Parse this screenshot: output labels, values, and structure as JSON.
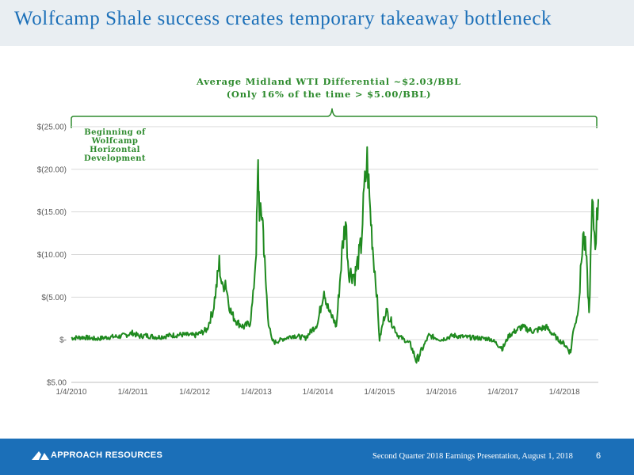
{
  "slide": {
    "title": "Wolfcamp Shale success creates temporary takeaway bottleneck",
    "annotation_line1": "Average Midland WTI Differential ~$2.03/BBL",
    "annotation_line2": "(Only 16% of the time > $5.00/BBL)",
    "marker_lines": [
      "Beginning of",
      "Wolfcamp",
      "Horizontal",
      "Development"
    ]
  },
  "footer": {
    "company": "APPROACH RESOURCES",
    "presentation": "Second Quarter 2018 Earnings Presentation, August 1, 2018",
    "page": "6"
  },
  "colors": {
    "series": "#1f8a1f",
    "annotation": "#2e8b2e",
    "title": "#1b6fb8",
    "footer_bg": "#1b6fb8"
  },
  "chart_data": {
    "type": "line",
    "title": "",
    "xlabel": "",
    "ylabel": "",
    "ylim": [
      -5,
      25
    ],
    "yticks": [
      {
        "value": 25,
        "label": "$(25.00)"
      },
      {
        "value": 20,
        "label": "$(20.00)"
      },
      {
        "value": 15,
        "label": "$(15.00)"
      },
      {
        "value": 10,
        "label": "$(10.00)"
      },
      {
        "value": 5,
        "label": "$(5.00)"
      },
      {
        "value": 0,
        "label": "$-"
      },
      {
        "value": -5,
        "label": "$5.00"
      }
    ],
    "xticks": [
      "1/4/2010",
      "1/4/2011",
      "1/4/2012",
      "1/4/2013",
      "1/4/2014",
      "1/4/2015",
      "1/4/2016",
      "1/4/2017",
      "1/4/2018"
    ],
    "grid": true,
    "series": [
      {
        "name": "",
        "x": [
          2010.0,
          2010.2,
          2010.4,
          2010.6,
          2010.8,
          2011.0,
          2011.1,
          2011.2,
          2011.4,
          2011.6,
          2011.8,
          2012.0,
          2012.1,
          2012.2,
          2012.3,
          2012.35,
          2012.4,
          2012.45,
          2012.5,
          2012.55,
          2012.6,
          2012.7,
          2012.8,
          2012.9,
          2012.95,
          2013.0,
          2013.03,
          2013.06,
          2013.1,
          2013.13,
          2013.16,
          2013.2,
          2013.25,
          2013.3,
          2013.4,
          2013.6,
          2013.8,
          2014.0,
          2014.1,
          2014.15,
          2014.2,
          2014.25,
          2014.3,
          2014.4,
          2014.45,
          2014.5,
          2014.6,
          2014.7,
          2014.75,
          2014.8,
          2014.85,
          2014.9,
          2014.95,
          2015.0,
          2015.1,
          2015.2,
          2015.3,
          2015.4,
          2015.5,
          2015.6,
          2015.7,
          2015.8,
          2016.0,
          2016.2,
          2016.4,
          2016.6,
          2016.8,
          2017.0,
          2017.1,
          2017.3,
          2017.5,
          2017.7,
          2017.9,
          2018.0,
          2018.1,
          2018.15,
          2018.2,
          2018.25,
          2018.3,
          2018.35,
          2018.4,
          2018.45,
          2018.5,
          2018.55
        ],
        "values": [
          0.2,
          0.3,
          0.1,
          0.3,
          0.4,
          0.8,
          0.4,
          0.5,
          0.3,
          0.5,
          0.6,
          0.5,
          0.8,
          1.2,
          3.5,
          6.0,
          9.0,
          6.0,
          7.0,
          4.5,
          3.0,
          2.0,
          1.5,
          2.0,
          5.0,
          11.0,
          20.0,
          14.0,
          15.0,
          10.0,
          6.0,
          2.0,
          0.0,
          -0.3,
          0.0,
          0.5,
          0.2,
          2.0,
          6.0,
          4.0,
          3.0,
          2.5,
          1.5,
          11.0,
          14.0,
          8.0,
          7.5,
          11.0,
          17.0,
          21.0,
          15.0,
          10.0,
          6.0,
          0.0,
          3.5,
          2.0,
          0.5,
          0.0,
          -0.5,
          -2.5,
          -1.0,
          0.5,
          0.0,
          0.5,
          0.3,
          0.2,
          0.1,
          -1.0,
          0.5,
          1.5,
          1.0,
          1.5,
          0.0,
          -0.5,
          -1.5,
          1.5,
          2.5,
          6.0,
          12.5,
          10.0,
          3.0,
          15.5,
          11.5,
          16.5
        ]
      }
    ]
  }
}
